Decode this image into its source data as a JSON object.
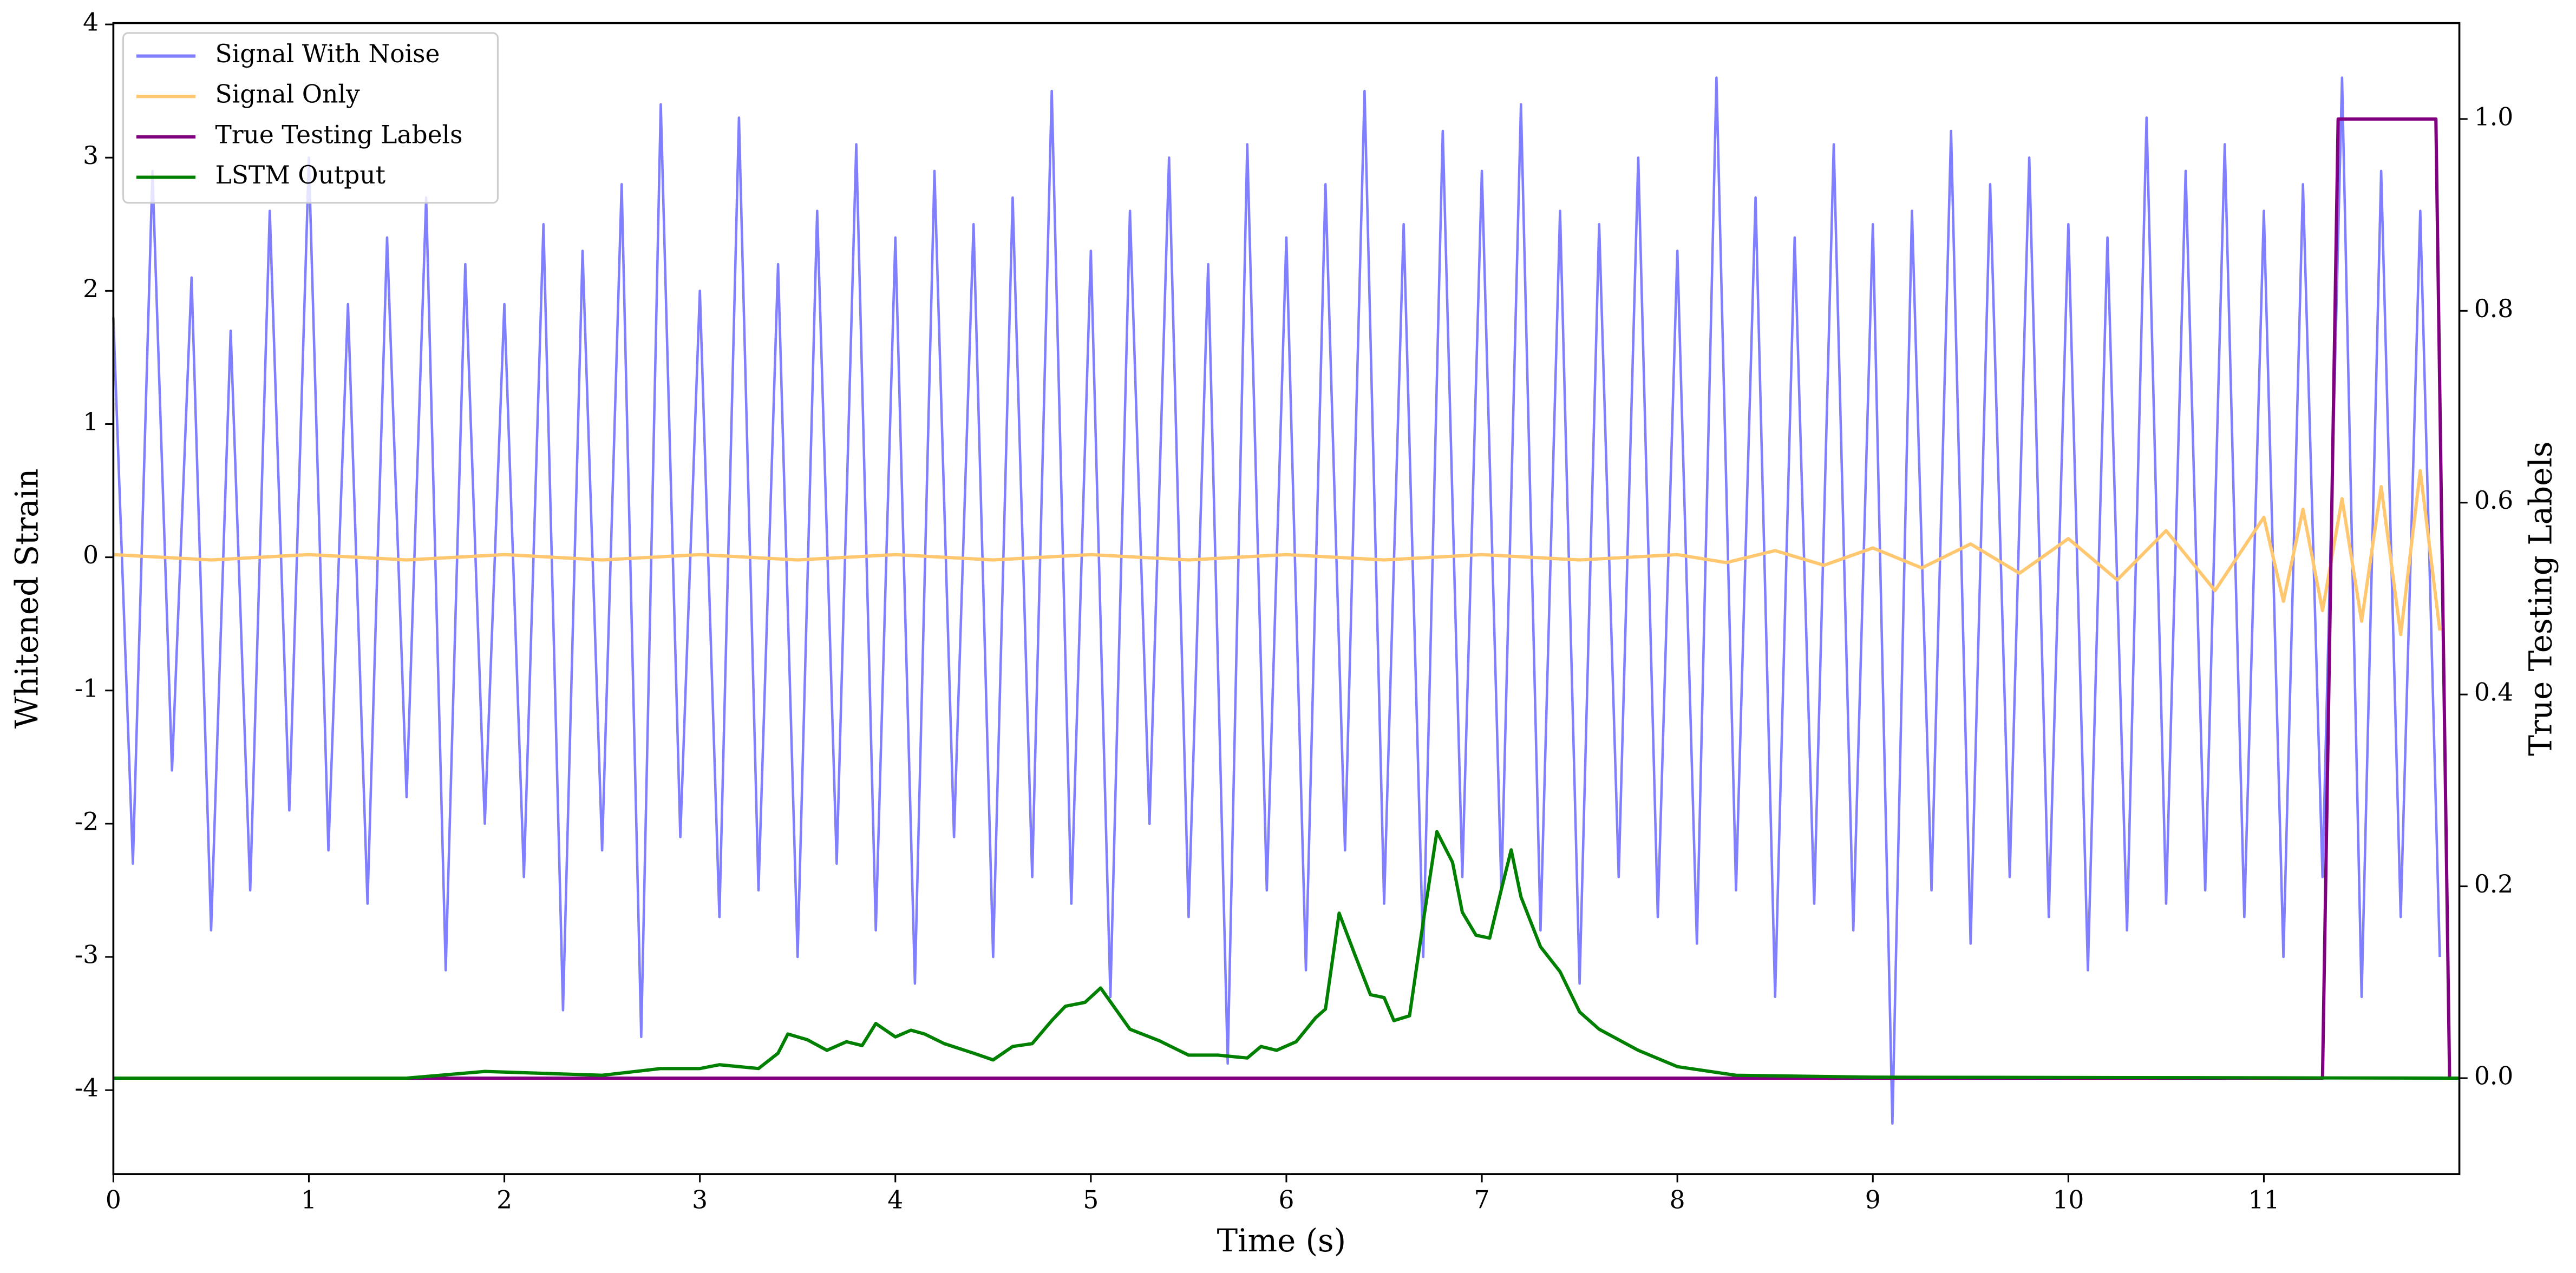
{
  "chart_data": {
    "type": "line",
    "xlabel": "Time (s)",
    "ylabel": "Whitened Strain",
    "y2label": "True Testing Labels",
    "xlim": [
      0,
      12
    ],
    "ylim": [
      -4.63,
      4.01
    ],
    "y2lim": [
      -0.1,
      1.1
    ],
    "xticks": [
      0,
      1,
      2,
      3,
      4,
      5,
      6,
      7,
      8,
      9,
      10,
      11
    ],
    "yticks": [
      -4,
      -3,
      -2,
      -1,
      0,
      1,
      2,
      3,
      4
    ],
    "y2ticks": [
      {
        "value": 0,
        "label": "0.0"
      },
      0.2,
      0.4,
      0.6,
      0.8,
      {
        "value": 1,
        "label": "1.0"
      }
    ],
    "legend": "upper left",
    "series": [
      {
        "name": "Signal With Noise",
        "color": "#7f7fff",
        "x": [
          0,
          0.1,
          0.2,
          0.3,
          0.4,
          0.5,
          0.6,
          0.7,
          0.8,
          0.9,
          1,
          1.1,
          1.2,
          1.3,
          1.4,
          1.5,
          1.6,
          1.7,
          1.8,
          1.9,
          2,
          2.1,
          2.2,
          2.3,
          2.4,
          2.5,
          2.6,
          2.7,
          2.8,
          2.9,
          3,
          3.1,
          3.2,
          3.3,
          3.4,
          3.5,
          3.6,
          3.7,
          3.8,
          3.9,
          4,
          4.1,
          4.2,
          4.3,
          4.4,
          4.5,
          4.6,
          4.7,
          4.8,
          4.9,
          5,
          5.1,
          5.2,
          5.3,
          5.4,
          5.5,
          5.6,
          5.7,
          5.8,
          5.9,
          6,
          6.1,
          6.2,
          6.3,
          6.4,
          6.5,
          6.6,
          6.7,
          6.8,
          6.9,
          7,
          7.1,
          7.2,
          7.3,
          7.4,
          7.5,
          7.6,
          7.7,
          7.8,
          7.9,
          8,
          8.1,
          8.2,
          8.3,
          8.4,
          8.5,
          8.6,
          8.7,
          8.8,
          8.9,
          9,
          9.1,
          9.2,
          9.3,
          9.4,
          9.5,
          9.6,
          9.7,
          9.8,
          9.9,
          10,
          10.1,
          10.2,
          10.3,
          10.4,
          10.5,
          10.6,
          10.7,
          10.8,
          10.9,
          11,
          11.1,
          11.2,
          11.3,
          11.4,
          11.5,
          11.6,
          11.7,
          11.8,
          11.9
        ],
        "values": [
          1.8,
          -2.3,
          2.9,
          -1.6,
          2.1,
          -2.8,
          1.7,
          -2.5,
          2.6,
          -1.9,
          3.0,
          -2.2,
          1.9,
          -2.6,
          2.4,
          -1.8,
          2.7,
          -3.1,
          2.2,
          -2.0,
          1.9,
          -2.4,
          2.5,
          -3.4,
          2.3,
          -2.2,
          2.8,
          -3.6,
          3.4,
          -2.1,
          2.0,
          -2.7,
          3.3,
          -2.5,
          2.2,
          -3.0,
          2.6,
          -2.3,
          3.1,
          -2.8,
          2.4,
          -3.2,
          2.9,
          -2.1,
          2.5,
          -3.0,
          2.7,
          -2.4,
          3.5,
          -2.6,
          2.3,
          -3.3,
          2.6,
          -2.0,
          3.0,
          -2.7,
          2.2,
          -3.8,
          3.1,
          -2.5,
          2.4,
          -3.1,
          2.8,
          -2.2,
          3.5,
          -2.6,
          2.5,
          -3.0,
          3.2,
          -2.4,
          2.9,
          -2.5,
          3.4,
          -2.8,
          2.6,
          -3.2,
          2.5,
          -2.4,
          3.0,
          -2.7,
          2.3,
          -2.9,
          3.6,
          -2.5,
          2.7,
          -3.3,
          2.4,
          -2.6,
          3.1,
          -2.8,
          2.5,
          -4.25,
          2.6,
          -2.5,
          3.2,
          -2.9,
          2.8,
          -2.4,
          3.0,
          -2.7,
          2.5,
          -3.1,
          2.4,
          -2.8,
          3.3,
          -2.6,
          2.9,
          -2.5,
          3.1,
          -2.7,
          2.6,
          -3.0,
          2.8,
          -2.4,
          3.6,
          -3.3,
          2.9,
          -2.7,
          2.6,
          -3.0
        ]
      },
      {
        "name": "Signal Only",
        "color": "#ffc870",
        "x": [
          0,
          0.5,
          1,
          1.5,
          2,
          2.5,
          3,
          3.5,
          4,
          4.5,
          5,
          5.5,
          6,
          6.5,
          7,
          7.5,
          8,
          8.25,
          8.5,
          8.75,
          9,
          9.25,
          9.5,
          9.75,
          10,
          10.25,
          10.5,
          10.75,
          11,
          11.1,
          11.2,
          11.3,
          11.4,
          11.5,
          11.6,
          11.7,
          11.8,
          11.9
        ],
        "values": [
          0.02,
          -0.02,
          0.02,
          -0.02,
          0.02,
          -0.02,
          0.02,
          -0.02,
          0.02,
          -0.02,
          0.02,
          -0.02,
          0.02,
          -0.02,
          0.02,
          -0.02,
          0.02,
          -0.04,
          0.05,
          -0.06,
          0.07,
          -0.08,
          0.1,
          -0.12,
          0.14,
          -0.17,
          0.2,
          -0.25,
          0.3,
          -0.33,
          0.36,
          -0.4,
          0.44,
          -0.48,
          0.53,
          -0.58,
          0.65,
          -0.55
        ]
      },
      {
        "name": "True Testing Labels",
        "color": "#800080",
        "axis": "y2",
        "x": [
          0,
          11.3,
          11.38,
          11.88,
          11.95
        ],
        "values": [
          0,
          0,
          1,
          1,
          0
        ]
      },
      {
        "name": "LSTM Output",
        "color": "#008000",
        "axis": "y2",
        "x": [
          0,
          1.5,
          1.9,
          2.5,
          2.8,
          3.0,
          3.1,
          3.3,
          3.4,
          3.45,
          3.55,
          3.65,
          3.75,
          3.83,
          3.9,
          4.0,
          4.08,
          4.15,
          4.25,
          4.4,
          4.5,
          4.6,
          4.7,
          4.8,
          4.87,
          4.97,
          5.05,
          5.2,
          5.35,
          5.5,
          5.65,
          5.8,
          5.87,
          5.95,
          6.05,
          6.15,
          6.2,
          6.27,
          6.35,
          6.43,
          6.5,
          6.55,
          6.63,
          6.7,
          6.77,
          6.85,
          6.9,
          6.97,
          7.04,
          7.1,
          7.15,
          7.2,
          7.3,
          7.4,
          7.5,
          7.6,
          7.8,
          8.0,
          8.3,
          9.0,
          12
        ],
        "values": [
          0,
          0,
          0.007,
          0.003,
          0.01,
          0.01,
          0.014,
          0.01,
          0.026,
          0.046,
          0.04,
          0.029,
          0.038,
          0.034,
          0.057,
          0.043,
          0.05,
          0.046,
          0.036,
          0.026,
          0.019,
          0.033,
          0.036,
          0.06,
          0.075,
          0.079,
          0.094,
          0.051,
          0.039,
          0.024,
          0.024,
          0.021,
          0.033,
          0.029,
          0.038,
          0.063,
          0.072,
          0.172,
          0.129,
          0.087,
          0.084,
          0.06,
          0.065,
          0.163,
          0.257,
          0.225,
          0.173,
          0.149,
          0.146,
          0.197,
          0.238,
          0.189,
          0.137,
          0.111,
          0.069,
          0.051,
          0.029,
          0.012,
          0.003,
          0.001,
          0
        ]
      }
    ]
  }
}
